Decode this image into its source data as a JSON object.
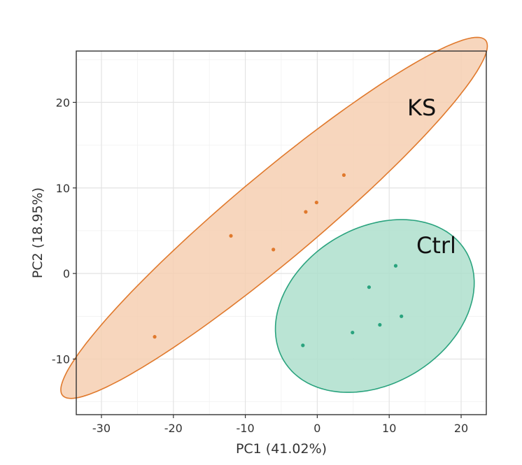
{
  "chart_data": {
    "type": "scatter",
    "xlabel": "PC1 (41.02%)",
    "ylabel": "PC2 (18.95%)",
    "xlim": [
      -33.5,
      23.5
    ],
    "ylim": [
      -16.5,
      26
    ],
    "x_ticks": [
      -30,
      -20,
      -10,
      0,
      10,
      20
    ],
    "y_ticks": [
      -10,
      0,
      10,
      20
    ],
    "grid": true,
    "series": [
      {
        "name": "KS",
        "color": "#e0792c",
        "fill": "#f6cfb2",
        "points": [
          {
            "x": -22.6,
            "y": -7.4
          },
          {
            "x": -12.0,
            "y": 4.4
          },
          {
            "x": -6.1,
            "y": 2.8
          },
          {
            "x": -1.6,
            "y": 7.2
          },
          {
            "x": -0.1,
            "y": 8.3
          },
          {
            "x": 3.7,
            "y": 11.5
          }
        ],
        "ellipse": {
          "cx": -6.0,
          "cy": 6.5,
          "rx": 36.0,
          "ry": 5.3,
          "angle_deg": 35
        }
      },
      {
        "name": "Ctrl",
        "color": "#2aa37e",
        "fill": "#aedfcc",
        "points": [
          {
            "x": -2.0,
            "y": -8.4
          },
          {
            "x": 4.9,
            "y": -6.9
          },
          {
            "x": 7.2,
            "y": -1.6
          },
          {
            "x": 8.7,
            "y": -6.0
          },
          {
            "x": 10.9,
            "y": 0.9
          },
          {
            "x": 11.7,
            "y": -5.0
          }
        ],
        "ellipse": {
          "cx": 8.0,
          "cy": -3.8,
          "rx": 14.3,
          "ry": 9.4,
          "angle_deg": 20
        }
      }
    ]
  }
}
